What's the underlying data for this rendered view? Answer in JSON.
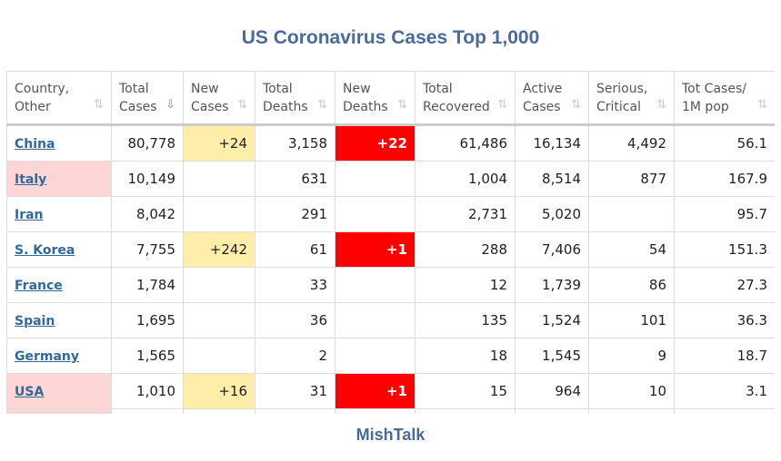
{
  "title": "US Coronavirus Cases Top 1,000",
  "footer": "MishTalk",
  "headers": [
    {
      "l1": "Country,",
      "l2": "Other"
    },
    {
      "l1": "Total",
      "l2": "Cases"
    },
    {
      "l1": "New",
      "l2": "Cases"
    },
    {
      "l1": "Total",
      "l2": "Deaths"
    },
    {
      "l1": "New",
      "l2": "Deaths"
    },
    {
      "l1": "Total",
      "l2": "Recovered"
    },
    {
      "l1": "Active",
      "l2": "Cases"
    },
    {
      "l1": "Serious,",
      "l2": "Critical"
    },
    {
      "l1": "Tot Cases/",
      "l2": "1M pop"
    }
  ],
  "rows": [
    {
      "country": "China",
      "highlight": false,
      "cells": [
        "80,778",
        "+24",
        "3,158",
        "+22",
        "61,486",
        "16,134",
        "4,492",
        "56.1"
      ]
    },
    {
      "country": "Italy",
      "highlight": true,
      "cells": [
        "10,149",
        "",
        "631",
        "",
        "1,004",
        "8,514",
        "877",
        "167.9"
      ]
    },
    {
      "country": "Iran",
      "highlight": false,
      "cells": [
        "8,042",
        "",
        "291",
        "",
        "2,731",
        "5,020",
        "",
        "95.7"
      ]
    },
    {
      "country": "S. Korea",
      "highlight": false,
      "cells": [
        "7,755",
        "+242",
        "61",
        "+1",
        "288",
        "7,406",
        "54",
        "151.3"
      ]
    },
    {
      "country": "France",
      "highlight": false,
      "cells": [
        "1,784",
        "",
        "33",
        "",
        "12",
        "1,739",
        "86",
        "27.3"
      ]
    },
    {
      "country": "Spain",
      "highlight": false,
      "cells": [
        "1,695",
        "",
        "36",
        "",
        "135",
        "1,524",
        "101",
        "36.3"
      ]
    },
    {
      "country": "Germany",
      "highlight": false,
      "cells": [
        "1,565",
        "",
        "2",
        "",
        "18",
        "1,545",
        "9",
        "18.7"
      ]
    },
    {
      "country": "USA",
      "highlight": true,
      "cells": [
        "1,010",
        "+16",
        "31",
        "+1",
        "15",
        "964",
        "10",
        "3.1"
      ]
    },
    {
      "country": "",
      "highlight": true,
      "cells": [
        "",
        "",
        "",
        "",
        "",
        "",
        "",
        ""
      ]
    }
  ]
}
